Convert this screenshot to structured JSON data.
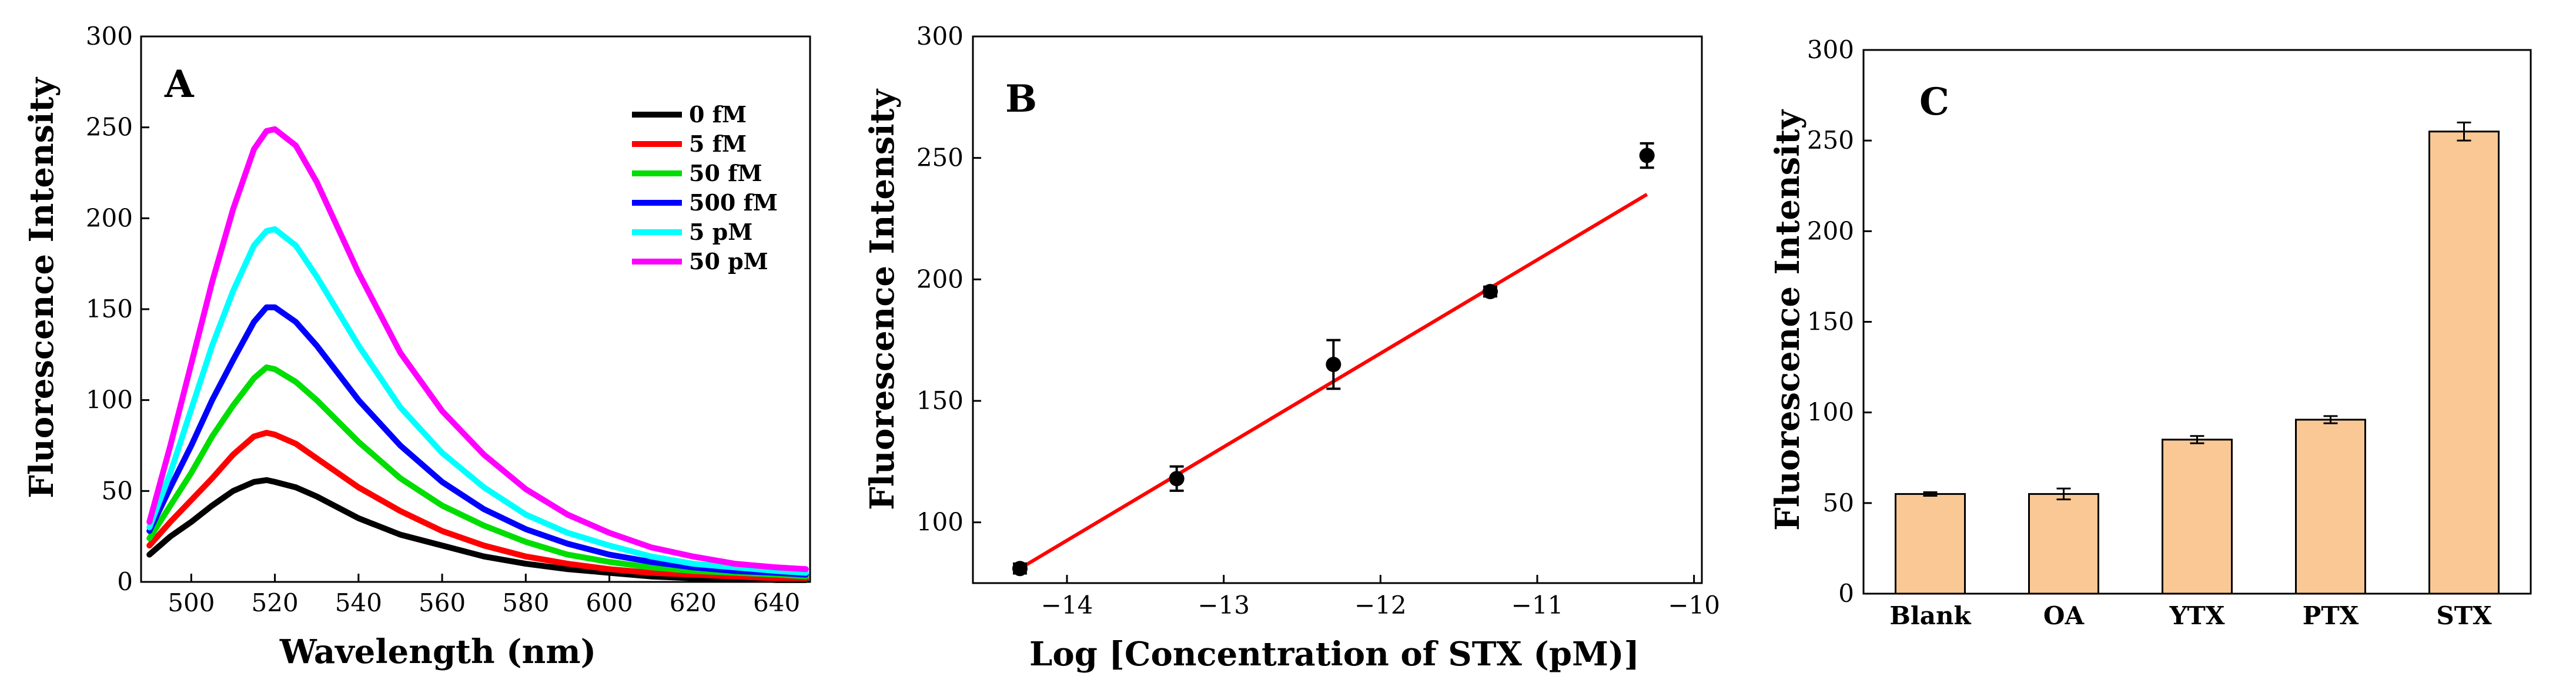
{
  "chart_data": [
    {
      "type": "line",
      "panel_label": "A",
      "xlabel": "Wavelength (nm)",
      "ylabel": "Fluorescence Intensity",
      "xlim": [
        488,
        648
      ],
      "ylim": [
        0,
        300
      ],
      "xticks": [
        500,
        520,
        540,
        560,
        580,
        600,
        620,
        640
      ],
      "yticks": [
        0,
        50,
        100,
        150,
        200,
        250,
        300
      ],
      "legend_placement": "top-right",
      "x": [
        490,
        495,
        500,
        505,
        510,
        515,
        518,
        520,
        525,
        530,
        540,
        550,
        560,
        570,
        580,
        590,
        600,
        610,
        620,
        630,
        640,
        647
      ],
      "series": [
        {
          "name": "0  fM",
          "color": "#000000",
          "values": [
            15,
            25,
            33,
            42,
            50,
            55,
            56,
            55,
            52,
            47,
            35,
            26,
            20,
            14,
            10,
            7,
            5,
            3,
            2,
            2,
            1,
            1
          ]
        },
        {
          "name": "5  fM",
          "color": "#ff0000",
          "values": [
            20,
            33,
            45,
            57,
            70,
            80,
            82,
            81,
            76,
            68,
            52,
            39,
            28,
            20,
            14,
            10,
            7,
            5,
            4,
            3,
            2,
            2
          ]
        },
        {
          "name": "50 fM",
          "color": "#00dd00",
          "values": [
            24,
            42,
            60,
            80,
            97,
            112,
            118,
            117,
            110,
            100,
            77,
            57,
            42,
            31,
            22,
            15,
            11,
            8,
            6,
            5,
            4,
            3
          ]
        },
        {
          "name": "500 fM",
          "color": "#0000ff",
          "values": [
            28,
            52,
            75,
            100,
            122,
            143,
            151,
            151,
            143,
            130,
            100,
            75,
            55,
            40,
            29,
            21,
            15,
            11,
            8,
            6,
            5,
            4
          ]
        },
        {
          "name": "5  pM",
          "color": "#00ffff",
          "values": [
            30,
            60,
            95,
            130,
            160,
            185,
            193,
            194,
            185,
            168,
            130,
            96,
            71,
            52,
            37,
            27,
            20,
            14,
            10,
            8,
            6,
            5
          ]
        },
        {
          "name": "50 pM",
          "color": "#ff00ff",
          "values": [
            33,
            75,
            120,
            165,
            205,
            238,
            248,
            249,
            240,
            220,
            170,
            126,
            94,
            70,
            51,
            37,
            27,
            19,
            14,
            10,
            8,
            7
          ]
        }
      ]
    },
    {
      "type": "scatter",
      "panel_label": "B",
      "xlabel": "Log [Concentration of STX (pM)]",
      "ylabel": "Fluorescence Intensity",
      "xlim": [
        -14.6,
        -9.95
      ],
      "ylim": [
        75,
        300
      ],
      "xticks": [
        -14,
        -13,
        -12,
        -11,
        -10
      ],
      "yticks": [
        100,
        150,
        200,
        250,
        300
      ],
      "points": [
        {
          "x": -14.3,
          "y": 81,
          "err": 2
        },
        {
          "x": -13.3,
          "y": 118,
          "err": 5
        },
        {
          "x": -12.3,
          "y": 165,
          "err": 10
        },
        {
          "x": -11.3,
          "y": 195,
          "err": 2
        },
        {
          "x": -10.3,
          "y": 251,
          "err": 5
        }
      ],
      "fit_line": {
        "x": [
          -14.3,
          -10.3
        ],
        "y": [
          81,
          235
        ],
        "color": "#ff0000"
      }
    },
    {
      "type": "bar",
      "panel_label": "C",
      "xlabel": "",
      "ylabel": "Fluorescence Intensity",
      "ylim": [
        0,
        300
      ],
      "yticks": [
        0,
        50,
        100,
        150,
        200,
        250,
        300
      ],
      "categories": [
        "Blank",
        "OA",
        "YTX",
        "PTX",
        "STX"
      ],
      "values": [
        55,
        55,
        85,
        96,
        255
      ],
      "errors": [
        1,
        3,
        2,
        2,
        5
      ],
      "bar_color": "#f9c895"
    }
  ]
}
